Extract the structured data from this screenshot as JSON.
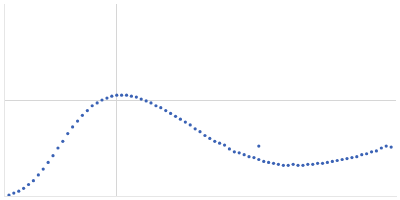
{
  "chart_data": {
    "type": "scatter",
    "x": [
      0.044,
      0.087,
      0.131,
      0.174,
      0.218,
      0.261,
      0.305,
      0.348,
      0.392,
      0.435,
      0.479,
      0.522,
      0.566,
      0.609,
      0.653,
      0.696,
      0.74,
      0.783,
      0.827,
      0.87,
      0.914,
      0.957,
      1.001,
      1.044,
      1.088,
      1.131,
      1.175,
      1.218,
      1.262,
      1.305,
      1.349,
      1.392,
      1.436,
      1.479,
      1.523,
      1.566,
      1.61,
      1.653,
      1.697,
      1.74,
      1.784,
      1.827,
      1.871,
      1.914,
      1.958,
      2.001,
      2.045,
      2.088,
      2.132,
      2.175,
      2.219,
      2.262,
      2.306,
      2.349,
      2.393,
      2.436,
      2.48,
      2.523,
      2.567,
      2.61,
      2.654,
      2.697,
      2.741,
      2.784,
      2.828,
      2.871,
      2.915,
      2.958,
      3.002,
      3.045,
      3.089,
      3.132,
      3.176,
      3.219,
      3.263,
      3.306,
      3.35,
      3.393,
      3.437,
      2.262
    ],
    "values": [
      0.01,
      0.03,
      0.05,
      0.08,
      0.12,
      0.16,
      0.22,
      0.28,
      0.35,
      0.42,
      0.5,
      0.57,
      0.65,
      0.72,
      0.78,
      0.84,
      0.89,
      0.94,
      0.97,
      1.0,
      1.02,
      1.04,
      1.05,
      1.05,
      1.05,
      1.04,
      1.03,
      1.01,
      0.99,
      0.97,
      0.94,
      0.92,
      0.89,
      0.86,
      0.83,
      0.8,
      0.77,
      0.74,
      0.7,
      0.67,
      0.63,
      0.6,
      0.57,
      0.55,
      0.53,
      0.49,
      0.46,
      0.45,
      0.43,
      0.41,
      0.4,
      0.38,
      0.36,
      0.35,
      0.34,
      0.33,
      0.32,
      0.32,
      0.33,
      0.32,
      0.32,
      0.33,
      0.33,
      0.34,
      0.34,
      0.35,
      0.36,
      0.37,
      0.38,
      0.39,
      0.4,
      0.41,
      0.43,
      0.44,
      0.46,
      0.47,
      0.5,
      0.52,
      0.51,
      0.52
    ],
    "color": "#3a62b5",
    "marker": "circle",
    "xlim": [
      0,
      3.48
    ],
    "xticks": [
      1
    ],
    "ylim": [
      0,
      2
    ],
    "yticks": [
      1
    ],
    "grid": true,
    "tick_labels": false
  }
}
